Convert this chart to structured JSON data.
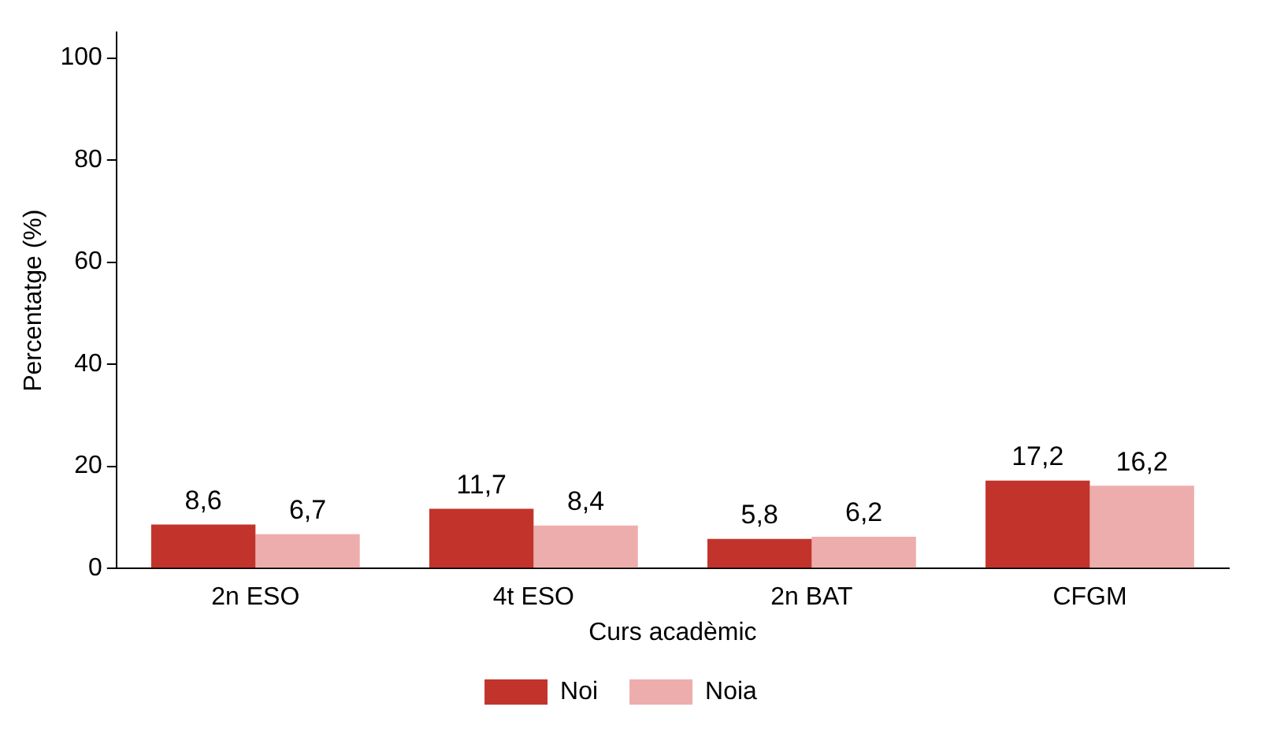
{
  "chart_data": {
    "type": "bar",
    "xlabel": "Curs acadèmic",
    "ylabel": "Percentatge (%)",
    "categories": [
      "2n ESO",
      "4t ESO",
      "2n BAT",
      "CFGM"
    ],
    "series": [
      {
        "name": "Noi",
        "color": "#c2342b",
        "values": [
          8.6,
          11.7,
          5.8,
          17.2
        ],
        "value_labels": [
          "8,6",
          "11,7",
          "5,8",
          "17,2"
        ]
      },
      {
        "name": "Noia",
        "color": "#eeadad",
        "values": [
          6.7,
          8.4,
          6.2,
          16.2
        ],
        "value_labels": [
          "6,7",
          "8,4",
          "6,2",
          "16,2"
        ]
      }
    ],
    "ylim": [
      0,
      105
    ],
    "yticks": [
      0,
      20,
      40,
      60,
      80,
      100
    ],
    "grid": false,
    "legend": "bottom"
  }
}
